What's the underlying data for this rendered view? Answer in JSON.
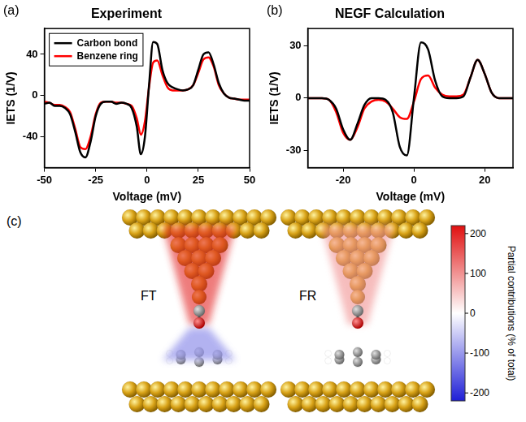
{
  "chart_data": [
    {
      "type": "line",
      "panel_label": "(a)",
      "title": "Experiment",
      "x_label": "Voltage (mV)",
      "y_label": "IETS (1/V)",
      "x": [
        -50,
        -47.5,
        -45,
        -42.5,
        -40,
        -37.5,
        -35,
        -32.5,
        -30,
        -27.5,
        -25,
        -22.5,
        -20,
        -17.5,
        -15,
        -12.5,
        -10,
        -7.5,
        -5,
        -3,
        -1,
        1,
        3,
        5,
        7.5,
        10,
        12.5,
        15,
        17.5,
        20,
        22.5,
        25,
        27.5,
        30,
        32.5,
        35,
        37.5,
        40,
        42.5,
        45,
        47.5,
        50
      ],
      "series": [
        {
          "name": "Carbon bond",
          "color": "#000000",
          "values": [
            -8,
            -7,
            -10,
            -10,
            -12,
            -18,
            -35,
            -55,
            -60,
            -45,
            -20,
            -8,
            -6,
            -6,
            -8,
            -7,
            -8,
            -12,
            -30,
            -57,
            -40,
            10,
            52,
            50,
            25,
            12,
            8,
            6,
            5,
            6,
            10,
            25,
            40,
            42,
            30,
            12,
            2,
            -2,
            -3,
            -4,
            -5,
            -5
          ]
        },
        {
          "name": "Benzene ring",
          "color": "#ff0000",
          "values": [
            -6,
            -7,
            -9,
            -9,
            -11,
            -16,
            -32,
            -50,
            -52,
            -40,
            -18,
            -7,
            -6,
            -6,
            -7,
            -7,
            -8,
            -10,
            -22,
            -38,
            -25,
            8,
            32,
            34,
            20,
            8,
            5,
            5,
            5,
            6,
            10,
            22,
            35,
            37,
            28,
            10,
            2,
            -2,
            -3,
            -4,
            -4,
            -4
          ]
        }
      ],
      "xlim": [
        -50,
        50
      ],
      "xticks": [
        -50,
        -25,
        0,
        25,
        50
      ],
      "ylim": [
        -70,
        65
      ],
      "yticks": [
        -40,
        0,
        40
      ],
      "grid": false,
      "legend": "top-left"
    },
    {
      "type": "line",
      "panel_label": "(b)",
      "title": "NEGF Calculation",
      "x_label": "Voltage (mV)",
      "y_label": "IETS (1/V)",
      "x": [
        -30,
        -28,
        -26,
        -24,
        -22,
        -20,
        -18,
        -16,
        -14,
        -12,
        -10,
        -8,
        -6,
        -4,
        -2,
        0,
        2,
        4,
        6,
        8,
        10,
        12,
        14,
        16,
        18,
        20,
        22,
        24,
        26,
        28
      ],
      "series": [
        {
          "color": "#000000",
          "values": [
            0,
            0,
            0,
            -1,
            -6,
            -18,
            -24,
            -15,
            -4,
            0,
            0,
            -1,
            -8,
            -28,
            -33,
            0,
            32,
            28,
            10,
            1,
            0,
            0,
            1,
            12,
            22,
            14,
            3,
            0,
            0,
            0
          ]
        },
        {
          "color": "#ff0000",
          "values": [
            0,
            0,
            0,
            -1,
            -8,
            -20,
            -24,
            -17,
            -6,
            -2,
            -1,
            -2,
            -6,
            -11,
            -12,
            -2,
            11,
            13,
            6,
            2,
            1,
            1,
            2,
            12,
            22,
            14,
            3,
            0,
            0,
            0
          ]
        }
      ],
      "xlim": [
        -30,
        28
      ],
      "xticks": [
        -20,
        0,
        20
      ],
      "ylim": [
        -40,
        40
      ],
      "yticks": [
        -30,
        0,
        30
      ],
      "grid": false
    }
  ],
  "diagram": {
    "panel_label": "(c)",
    "scenes": [
      {
        "label": "FT",
        "tip_contribution": 200,
        "substrate_contribution": -100
      },
      {
        "label": "FR",
        "tip_contribution": 100
      }
    ],
    "colorbar": {
      "label": "Partial contributions (% of total)",
      "range": [
        -220,
        220
      ],
      "ticks": [
        200,
        100,
        0,
        -100,
        -200
      ],
      "colors": {
        "negative": "#1f1fd6",
        "zero": "#ffffff",
        "positive": "#e01010"
      }
    }
  }
}
